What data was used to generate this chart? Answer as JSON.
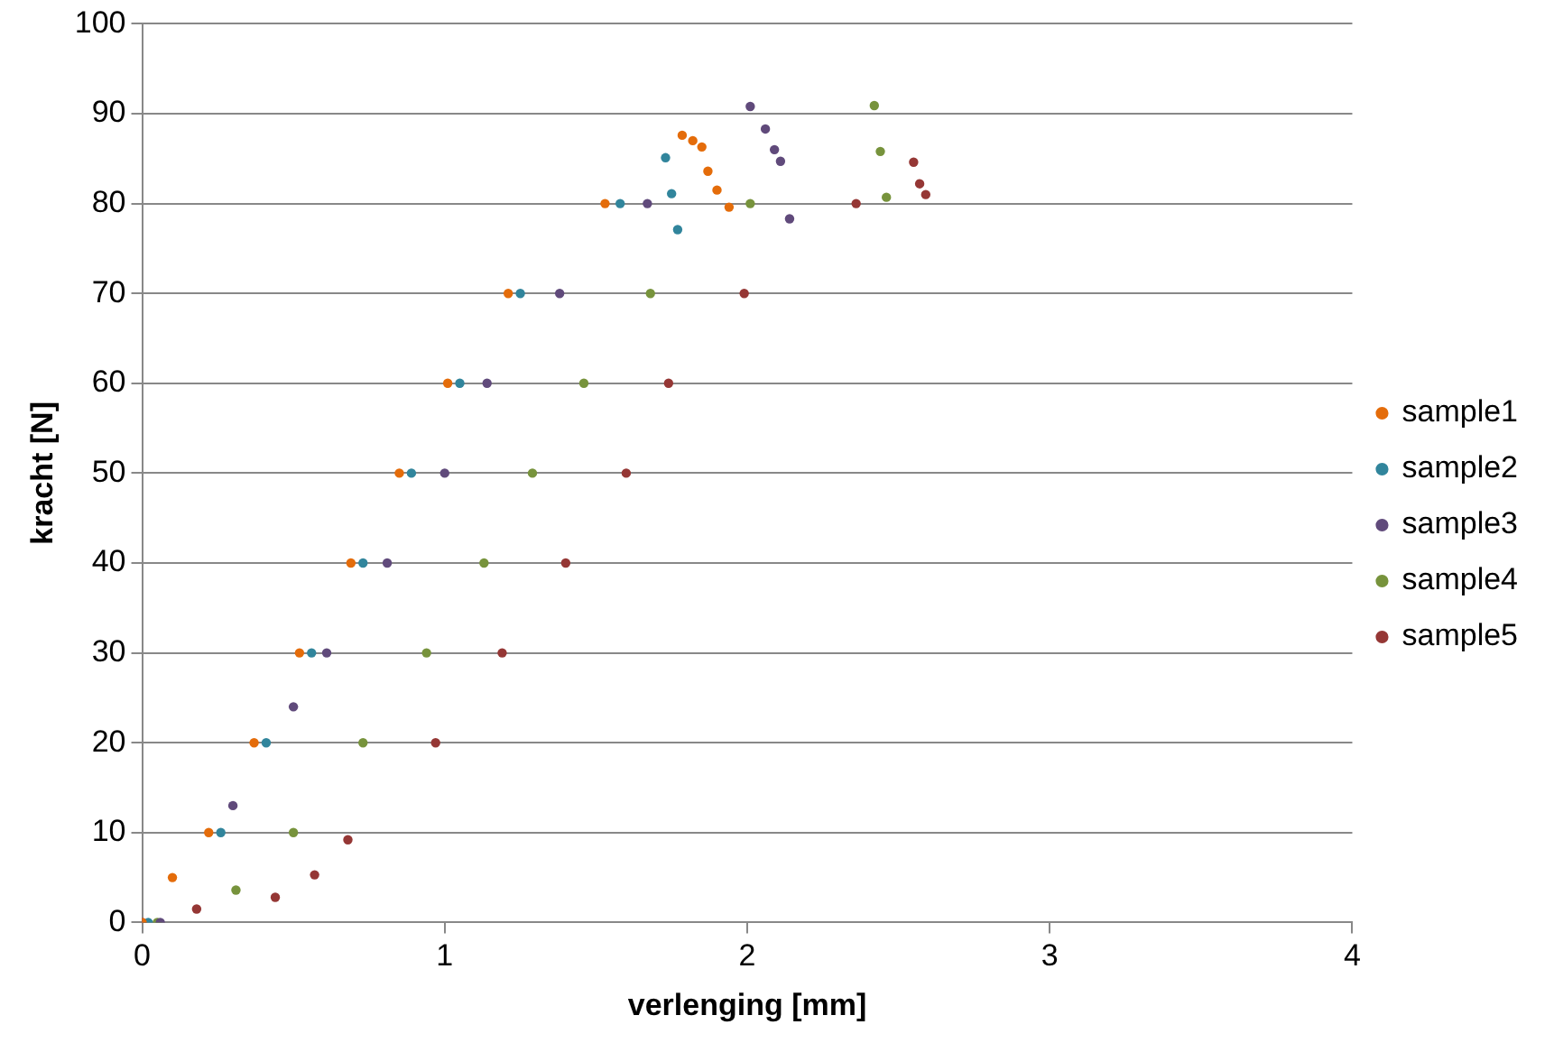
{
  "chart_data": {
    "type": "scatter",
    "xlabel": "verlenging [mm]",
    "ylabel": "kracht [N]",
    "xlim": [
      0,
      4
    ],
    "xticks": [
      0,
      1,
      2,
      3,
      4
    ],
    "ylim": [
      0,
      100
    ],
    "yticks": [
      0,
      10,
      20,
      30,
      40,
      50,
      60,
      70,
      80,
      90,
      100
    ],
    "grid": "y",
    "legend": "right",
    "marker": "circle",
    "series": [
      {
        "name": "sample1",
        "color": "#e46c0a",
        "x": [
          0,
          0.1,
          0.22,
          0.37,
          0.52,
          0.69,
          0.85,
          1.01,
          1.21,
          1.53,
          1.785,
          1.82,
          1.85,
          1.87,
          1.9,
          1.94
        ],
        "values": [
          0,
          5,
          10,
          20,
          30,
          40,
          50,
          60,
          70,
          80,
          87.6,
          87,
          86.3,
          83.6,
          81.5,
          79.6
        ]
      },
      {
        "name": "sample2",
        "color": "#31859c",
        "x": [
          0.02,
          0.26,
          0.41,
          0.56,
          0.73,
          0.89,
          1.05,
          1.25,
          1.58,
          1.73,
          1.75,
          1.77
        ],
        "values": [
          0,
          10,
          20,
          30,
          40,
          50,
          60,
          70,
          80,
          85.1,
          81.1,
          77.1
        ]
      },
      {
        "name": "sample3",
        "color": "#604a7b",
        "x": [
          0.06,
          0.3,
          0.5,
          0.61,
          0.81,
          1.0,
          1.14,
          1.38,
          1.67,
          2.01,
          2.06,
          2.09,
          2.11,
          2.14
        ],
        "values": [
          0,
          13,
          24,
          30,
          40,
          50,
          60,
          70,
          80,
          90.8,
          88.3,
          86,
          84.7,
          78.3
        ]
      },
      {
        "name": "sample4",
        "color": "#77933c",
        "x": [
          0.05,
          0.31,
          0.5,
          0.73,
          0.94,
          1.13,
          1.29,
          1.46,
          1.68,
          2.01,
          2.42,
          2.44,
          2.46
        ],
        "values": [
          0,
          3.6,
          10,
          20,
          30,
          40,
          50,
          60,
          70,
          80,
          90.9,
          85.8,
          80.7
        ]
      },
      {
        "name": "sample5",
        "color": "#953735",
        "x": [
          0,
          0.18,
          0.44,
          0.57,
          0.68,
          0.97,
          1.19,
          1.4,
          1.6,
          1.74,
          1.99,
          2.36,
          2.55,
          2.57,
          2.59
        ],
        "values": [
          0,
          1.5,
          2.8,
          5.3,
          9.2,
          20,
          30,
          40,
          50,
          60,
          70,
          80,
          84.6,
          82.2,
          81
        ]
      }
    ]
  }
}
